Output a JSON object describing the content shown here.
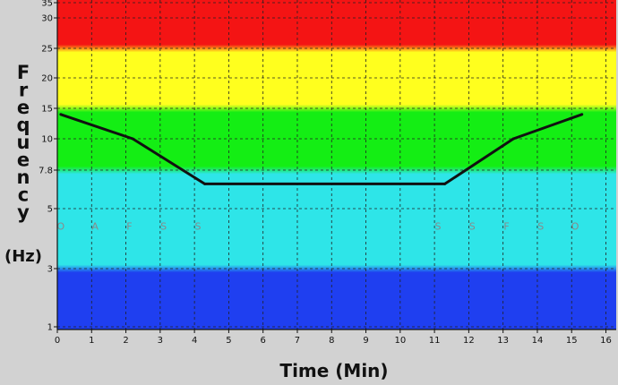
{
  "chart_data": {
    "type": "line",
    "xlabel": "Time (Min)",
    "ylabel_word": "Frequency",
    "ylabel_unit": "(Hz)",
    "x_ticks": [
      0,
      1,
      2,
      3,
      4,
      5,
      6,
      7,
      8,
      9,
      10,
      11,
      12,
      13,
      14,
      15,
      16
    ],
    "y_ticks": [
      1,
      3,
      5,
      7.8,
      10,
      15,
      20,
      25,
      30,
      35
    ],
    "y_tick_labels": [
      "1",
      "3",
      "5",
      "7.8",
      "10",
      "15",
      "20",
      "25",
      "30",
      "35"
    ],
    "xlim": [
      0,
      16.3
    ],
    "ylim": [
      1,
      36
    ],
    "y_scale": "custom-band",
    "grid": true,
    "bands": [
      {
        "from": 1,
        "to": 3,
        "color": "#1f3ff0"
      },
      {
        "from": 3,
        "to": 7.8,
        "color": "#2ee5e8"
      },
      {
        "from": 7.8,
        "to": 15,
        "color": "#14ee14"
      },
      {
        "from": 15,
        "to": 25,
        "color": "#ffff1e"
      },
      {
        "from": 25,
        "to": 36,
        "color": "#f41414"
      }
    ],
    "series": [
      {
        "color": "#111111",
        "x": [
          0.1,
          2.2,
          4.3,
          11.3,
          13.3,
          15.3
        ],
        "y": [
          14,
          10,
          6.8,
          6.8,
          10,
          14
        ]
      }
    ],
    "segment_labels": [
      {
        "text": "O",
        "x": 0.1
      },
      {
        "text": "A",
        "x": 1.1
      },
      {
        "text": "F",
        "x": 2.1
      },
      {
        "text": "S",
        "x": 3.1
      },
      {
        "text": "S",
        "x": 4.1
      },
      {
        "text": "S",
        "x": 11.1
      },
      {
        "text": "S",
        "x": 12.1
      },
      {
        "text": "F",
        "x": 13.1
      },
      {
        "text": "S",
        "x": 14.1
      },
      {
        "text": "O",
        "x": 15.1
      }
    ],
    "segment_label_y": 4.3
  }
}
